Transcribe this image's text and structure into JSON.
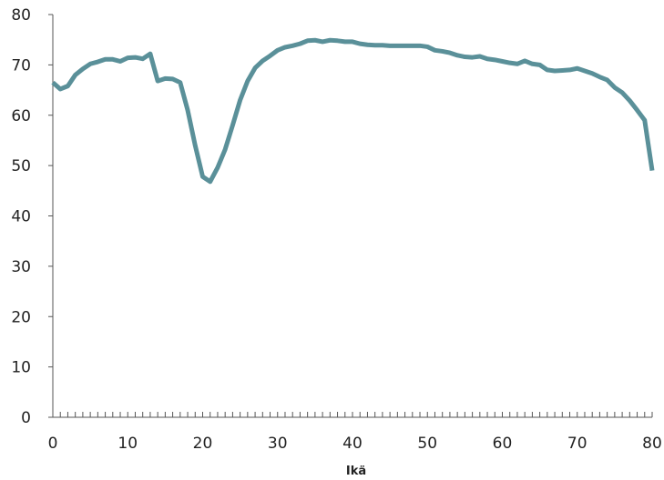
{
  "chart_data": {
    "type": "line",
    "title": "",
    "xlabel": "Ikä",
    "ylabel": "",
    "xlim": [
      0,
      80
    ],
    "ylim": [
      0,
      80
    ],
    "x_ticks": [
      0,
      10,
      20,
      30,
      40,
      50,
      60,
      70,
      80
    ],
    "y_ticks": [
      0,
      10,
      20,
      30,
      40,
      50,
      60,
      70,
      80
    ],
    "grid": false,
    "legend": "none",
    "series": [
      {
        "color": "#5a9099",
        "x": [
          0,
          1,
          2,
          3,
          4,
          5,
          6,
          7,
          8,
          9,
          10,
          11,
          12,
          13,
          14,
          15,
          16,
          17,
          18,
          19,
          20,
          21,
          22,
          23,
          24,
          25,
          26,
          27,
          28,
          29,
          30,
          31,
          32,
          33,
          34,
          35,
          36,
          37,
          38,
          39,
          40,
          41,
          42,
          43,
          44,
          45,
          46,
          47,
          48,
          49,
          50,
          51,
          52,
          53,
          54,
          55,
          56,
          57,
          58,
          59,
          60,
          61,
          62,
          63,
          64,
          65,
          66,
          67,
          68,
          69,
          70,
          71,
          72,
          73,
          74,
          75,
          76,
          77,
          78,
          79,
          80
        ],
        "y": [
          66.5,
          65.2,
          65.8,
          68.0,
          69.2,
          70.2,
          70.6,
          71.1,
          71.1,
          70.7,
          71.4,
          71.5,
          71.2,
          72.2,
          66.8,
          67.3,
          67.2,
          66.5,
          61.0,
          54.0,
          47.8,
          46.8,
          49.6,
          53.2,
          58.0,
          63.0,
          66.8,
          69.4,
          70.8,
          71.8,
          72.9,
          73.5,
          73.8,
          74.2,
          74.8,
          74.9,
          74.6,
          74.9,
          74.8,
          74.6,
          74.6,
          74.2,
          74.0,
          73.9,
          73.9,
          73.8,
          73.8,
          73.8,
          73.8,
          73.8,
          73.6,
          72.9,
          72.7,
          72.4,
          71.9,
          71.6,
          71.5,
          71.7,
          71.2,
          71.0,
          70.7,
          70.4,
          70.2,
          70.8,
          70.2,
          70.0,
          69.0,
          68.8,
          68.9,
          69.0,
          69.3,
          68.8,
          68.3,
          67.6,
          67.0,
          65.5,
          64.5,
          62.9,
          61.0,
          59.0,
          49.0
        ]
      }
    ]
  }
}
